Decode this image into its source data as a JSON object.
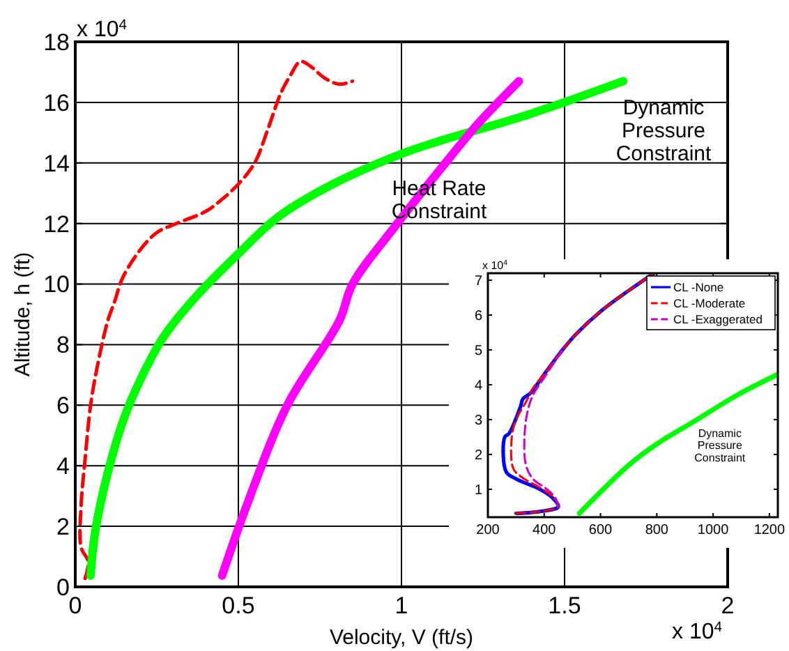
{
  "chart_data": [
    {
      "type": "line",
      "xlabel": "Velocity, V (ft/s)",
      "ylabel": "Altitude, h (ft)",
      "xlim": [
        0,
        2
      ],
      "ylim": [
        0,
        18
      ],
      "xticks": [
        0,
        0.5,
        1,
        1.5,
        2
      ],
      "yticks": [
        0,
        2,
        4,
        6,
        8,
        10,
        12,
        14,
        16,
        18
      ],
      "grid": true,
      "legend": false,
      "annotations": [
        "x 10$^{4}$",
        "x 10$^{4}$",
        "Heat Rate\nConstraint",
        "Dynamic\nPressure\nConstraint"
      ],
      "series": [
        {
          "color": "#ff0000",
          "line_style": "dashed",
          "x": [
            0.03,
            0.04,
            0.018,
            0.018,
            0.03,
            0.047,
            0.068,
            0.1,
            0.12,
            0.145,
            0.197,
            0.25,
            0.31,
            0.4,
            0.45,
            0.5,
            0.55,
            0.59,
            0.63,
            0.66,
            0.69,
            0.72,
            0.765,
            0.81,
            0.85
          ],
          "values": [
            0.28,
            0.83,
            1.3,
            2.7,
            4.2,
            6.0,
            7.3,
            8.8,
            9.4,
            10.2,
            11.1,
            11.7,
            12.0,
            12.4,
            12.8,
            13.3,
            14.0,
            15.1,
            16.3,
            16.9,
            17.35,
            17.2,
            16.8,
            16.6,
            16.7
          ]
        },
        {
          "color": "#00ff00",
          "x": [
            0.047,
            0.06,
            0.098,
            0.154,
            0.24,
            0.28,
            0.38,
            0.5,
            0.62,
            0.79,
            1.0,
            1.11,
            1.39,
            1.68
          ],
          "values": [
            0.37,
            1.75,
            3.7,
            5.7,
            7.7,
            8.4,
            9.7,
            11.0,
            12.2,
            13.3,
            14.3,
            14.7,
            15.6,
            16.7
          ]
        },
        {
          "color": "#ff00ff",
          "x": [
            0.45,
            0.525,
            0.65,
            0.81,
            0.85,
            0.98,
            1.15,
            1.235,
            1.36
          ],
          "values": [
            0.37,
            2.67,
            6.0,
            8.8,
            10.0,
            11.9,
            14.2,
            15.3,
            16.7
          ]
        }
      ]
    },
    {
      "type": "line",
      "xlim": [
        200,
        1230
      ],
      "ylim": [
        0.2,
        7.2
      ],
      "xticks": [
        200,
        400,
        600,
        800,
        1000,
        1200
      ],
      "yticks": [
        1,
        2,
        3,
        4,
        5,
        6,
        7
      ],
      "grid": false,
      "legend": "top right",
      "annotations": [
        "x 10$^{4}$",
        "Dynamic\nPressure\nConstraint"
      ],
      "series": [
        {
          "name": "CL -None",
          "color": "#0000ff",
          "line_style": "solid",
          "x": [
            300,
            400,
            450,
            430,
            385,
            300,
            265,
            260,
            275,
            315,
            325,
            350,
            400,
            465,
            513,
            600,
            700,
            790
          ],
          "values": [
            0.31,
            0.38,
            0.5,
            0.75,
            1.0,
            1.3,
            1.5,
            2.5,
            2.6,
            3.35,
            3.6,
            3.75,
            4.3,
            5.0,
            5.45,
            6.1,
            6.7,
            7.2
          ]
        },
        {
          "name": "CL -Moderate",
          "color": "#ff0000",
          "line_style": "dashed",
          "x": [
            300,
            400,
            450,
            435,
            395,
            320,
            290,
            285,
            300,
            335,
            360,
            400,
            465,
            513,
            600,
            700,
            790
          ],
          "values": [
            0.31,
            0.38,
            0.5,
            0.75,
            1.0,
            1.35,
            1.6,
            2.5,
            3.0,
            3.5,
            3.9,
            4.3,
            5.0,
            5.45,
            6.1,
            6.7,
            7.2
          ]
        },
        {
          "name": "CL -Exaggerated",
          "color": "#cc00cc",
          "line_style": "dashed",
          "x": [
            450,
            440,
            410,
            360,
            335,
            330,
            340,
            360,
            400,
            465
          ],
          "values": [
            0.5,
            0.75,
            1.0,
            1.3,
            1.7,
            2.5,
            3.2,
            3.7,
            4.2,
            5.0
          ]
        },
        {
          "color": "#00ff00",
          "line_style": "solid",
          "x": [
            525,
            700,
            800,
            935,
            1085,
            1230
          ],
          "values": [
            0.31,
            1.69,
            2.3,
            2.96,
            3.7,
            4.3
          ]
        }
      ]
    }
  ]
}
